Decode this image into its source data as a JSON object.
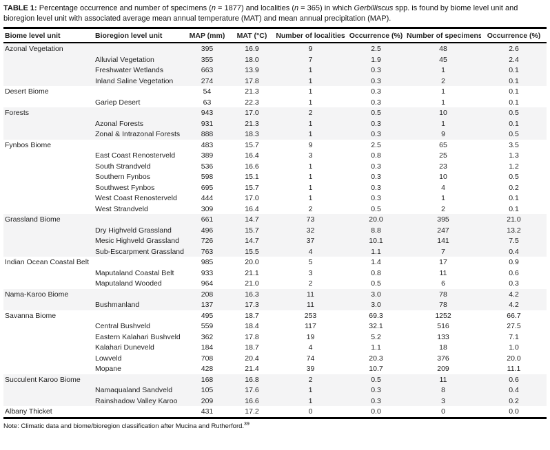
{
  "title": {
    "label": "TABLE 1:",
    "part1": " Percentage occurrence and number of specimens (",
    "n1": "n",
    "part2": " = 1877) and localities (",
    "n2": "n",
    "part3": " = 365) in which ",
    "genus": "Gerbilliscus",
    "part4": " spp. is found by biome level unit and bioregion level unit with associated average mean annual temperature (MAT) and mean annual precipitation (MAP)."
  },
  "table": {
    "columns": [
      "Biome level unit",
      "Bioregion level unit",
      "MAP (mm)",
      "MAT (°C)",
      "Number of localities",
      "Occurrence (%)",
      "Number of specimens",
      "Occurrence (%)"
    ],
    "rows": [
      {
        "biome": "Azonal Vegetation",
        "bioregion": "",
        "map": "395",
        "mat": "16.9",
        "localities": "9",
        "occ_localities": "2.5",
        "specimens": "48",
        "occ_specimens": "2.6",
        "shaded": true
      },
      {
        "biome": "",
        "bioregion": "Alluvial Vegetation",
        "map": "355",
        "mat": "18.0",
        "localities": "7",
        "occ_localities": "1.9",
        "specimens": "45",
        "occ_specimens": "2.4",
        "shaded": true
      },
      {
        "biome": "",
        "bioregion": "Freshwater Wetlands",
        "map": "663",
        "mat": "13.9",
        "localities": "1",
        "occ_localities": "0.3",
        "specimens": "1",
        "occ_specimens": "0.1",
        "shaded": true
      },
      {
        "biome": "",
        "bioregion": "Inland Saline Vegetation",
        "map": "274",
        "mat": "17.8",
        "localities": "1",
        "occ_localities": "0.3",
        "specimens": "2",
        "occ_specimens": "0.1",
        "shaded": true
      },
      {
        "biome": "Desert Biome",
        "bioregion": "",
        "map": "54",
        "mat": "21.3",
        "localities": "1",
        "occ_localities": "0.3",
        "specimens": "1",
        "occ_specimens": "0.1",
        "shaded": false
      },
      {
        "biome": "",
        "bioregion": "Gariep Desert",
        "map": "63",
        "mat": "22.3",
        "localities": "1",
        "occ_localities": "0.3",
        "specimens": "1",
        "occ_specimens": "0.1",
        "shaded": false
      },
      {
        "biome": "Forests",
        "bioregion": "",
        "map": "943",
        "mat": "17.0",
        "localities": "2",
        "occ_localities": "0.5",
        "specimens": "10",
        "occ_specimens": "0.5",
        "shaded": true
      },
      {
        "biome": "",
        "bioregion": "Azonal Forests",
        "map": "931",
        "mat": "21.3",
        "localities": "1",
        "occ_localities": "0.3",
        "specimens": "1",
        "occ_specimens": "0.1",
        "shaded": true
      },
      {
        "biome": "",
        "bioregion": "Zonal & Intrazonal Forests",
        "map": "888",
        "mat": "18.3",
        "localities": "1",
        "occ_localities": "0.3",
        "specimens": "9",
        "occ_specimens": "0.5",
        "shaded": true
      },
      {
        "biome": "Fynbos Biome",
        "bioregion": "",
        "map": "483",
        "mat": "15.7",
        "localities": "9",
        "occ_localities": "2.5",
        "specimens": "65",
        "occ_specimens": "3.5",
        "shaded": false
      },
      {
        "biome": "",
        "bioregion": "East Coast Renosterveld",
        "map": "389",
        "mat": "16.4",
        "localities": "3",
        "occ_localities": "0.8",
        "specimens": "25",
        "occ_specimens": "1.3",
        "shaded": false
      },
      {
        "biome": "",
        "bioregion": "South Strandveld",
        "map": "536",
        "mat": "16.6",
        "localities": "1",
        "occ_localities": "0.3",
        "specimens": "23",
        "occ_specimens": "1.2",
        "shaded": false
      },
      {
        "biome": "",
        "bioregion": "Southern Fynbos",
        "map": "598",
        "mat": "15.1",
        "localities": "1",
        "occ_localities": "0.3",
        "specimens": "10",
        "occ_specimens": "0.5",
        "shaded": false
      },
      {
        "biome": "",
        "bioregion": "Southwest Fynbos",
        "map": "695",
        "mat": "15.7",
        "localities": "1",
        "occ_localities": "0.3",
        "specimens": "4",
        "occ_specimens": "0.2",
        "shaded": false
      },
      {
        "biome": "",
        "bioregion": "West Coast Renosterveld",
        "map": "444",
        "mat": "17.0",
        "localities": "1",
        "occ_localities": "0.3",
        "specimens": "1",
        "occ_specimens": "0.1",
        "shaded": false
      },
      {
        "biome": "",
        "bioregion": "West Strandveld",
        "map": "309",
        "mat": "16.4",
        "localities": "2",
        "occ_localities": "0.5",
        "specimens": "2",
        "occ_specimens": "0.1",
        "shaded": false
      },
      {
        "biome": "Grassland Biome",
        "bioregion": "",
        "map": "661",
        "mat": "14.7",
        "localities": "73",
        "occ_localities": "20.0",
        "specimens": "395",
        "occ_specimens": "21.0",
        "shaded": true
      },
      {
        "biome": "",
        "bioregion": "Dry Highveld Grassland",
        "map": "496",
        "mat": "15.7",
        "localities": "32",
        "occ_localities": "8.8",
        "specimens": "247",
        "occ_specimens": "13.2",
        "shaded": true
      },
      {
        "biome": "",
        "bioregion": "Mesic Highveld Grassland",
        "map": "726",
        "mat": "14.7",
        "localities": "37",
        "occ_localities": "10.1",
        "specimens": "141",
        "occ_specimens": "7.5",
        "shaded": true
      },
      {
        "biome": "",
        "bioregion": "Sub-Escarpment Grassland",
        "map": "763",
        "mat": "15.5",
        "localities": "4",
        "occ_localities": "1.1",
        "specimens": "7",
        "occ_specimens": "0.4",
        "shaded": true
      },
      {
        "biome": "Indian Ocean Coastal Belt",
        "bioregion": "",
        "map": "985",
        "mat": "20.0",
        "localities": "5",
        "occ_localities": "1.4",
        "specimens": "17",
        "occ_specimens": "0.9",
        "shaded": false
      },
      {
        "biome": "",
        "bioregion": "Maputaland Coastal Belt",
        "map": "933",
        "mat": "21.1",
        "localities": "3",
        "occ_localities": "0.8",
        "specimens": "11",
        "occ_specimens": "0.6",
        "shaded": false
      },
      {
        "biome": "",
        "bioregion": "Maputaland Wooded",
        "map": "964",
        "mat": "21.0",
        "localities": "2",
        "occ_localities": "0.5",
        "specimens": "6",
        "occ_specimens": "0.3",
        "shaded": false
      },
      {
        "biome": "Nama-Karoo Biome",
        "bioregion": "",
        "map": "208",
        "mat": "16.3",
        "localities": "11",
        "occ_localities": "3.0",
        "specimens": "78",
        "occ_specimens": "4.2",
        "shaded": true
      },
      {
        "biome": "",
        "bioregion": "Bushmanland",
        "map": "137",
        "mat": "17.3",
        "localities": "11",
        "occ_localities": "3.0",
        "specimens": "78",
        "occ_specimens": "4.2",
        "shaded": true
      },
      {
        "biome": "Savanna Biome",
        "bioregion": "",
        "map": "495",
        "mat": "18.7",
        "localities": "253",
        "occ_localities": "69.3",
        "specimens": "1252",
        "occ_specimens": "66.7",
        "shaded": false
      },
      {
        "biome": "",
        "bioregion": "Central Bushveld",
        "map": "559",
        "mat": "18.4",
        "localities": "117",
        "occ_localities": "32.1",
        "specimens": "516",
        "occ_specimens": "27.5",
        "shaded": false
      },
      {
        "biome": "",
        "bioregion": "Eastern Kalahari Bushveld",
        "map": "362",
        "mat": "17.8",
        "localities": "19",
        "occ_localities": "5.2",
        "specimens": "133",
        "occ_specimens": "7.1",
        "shaded": false
      },
      {
        "biome": "",
        "bioregion": "Kalahari Duneveld",
        "map": "184",
        "mat": "18.7",
        "localities": "4",
        "occ_localities": "1.1",
        "specimens": "18",
        "occ_specimens": "1.0",
        "shaded": false
      },
      {
        "biome": "",
        "bioregion": "Lowveld",
        "map": "708",
        "mat": "20.4",
        "localities": "74",
        "occ_localities": "20.3",
        "specimens": "376",
        "occ_specimens": "20.0",
        "shaded": false
      },
      {
        "biome": "",
        "bioregion": "Mopane",
        "map": "428",
        "mat": "21.4",
        "localities": "39",
        "occ_localities": "10.7",
        "specimens": "209",
        "occ_specimens": "11.1",
        "shaded": false
      },
      {
        "biome": "Succulent Karoo Biome",
        "bioregion": "",
        "map": "168",
        "mat": "16.8",
        "localities": "2",
        "occ_localities": "0.5",
        "specimens": "11",
        "occ_specimens": "0.6",
        "shaded": true
      },
      {
        "biome": "",
        "bioregion": "Namaqualand Sandveld",
        "map": "105",
        "mat": "17.6",
        "localities": "1",
        "occ_localities": "0.3",
        "specimens": "8",
        "occ_specimens": "0.4",
        "shaded": true
      },
      {
        "biome": "",
        "bioregion": "Rainshadow Valley Karoo",
        "map": "209",
        "mat": "16.6",
        "localities": "1",
        "occ_localities": "0.3",
        "specimens": "3",
        "occ_specimens": "0.2",
        "shaded": true
      },
      {
        "biome": "Albany Thicket",
        "bioregion": "",
        "map": "431",
        "mat": "17.2",
        "localities": "0",
        "occ_localities": "0.0",
        "specimens": "0",
        "occ_specimens": "0.0",
        "shaded": false
      }
    ]
  },
  "note": {
    "text": "Note: Climatic data and biome/bioregion classification after Mucina and Rutherford.",
    "ref": "39"
  },
  "colors": {
    "row_band": "#f4f4f5",
    "rule": "#000000",
    "text": "#1f1f1f"
  }
}
